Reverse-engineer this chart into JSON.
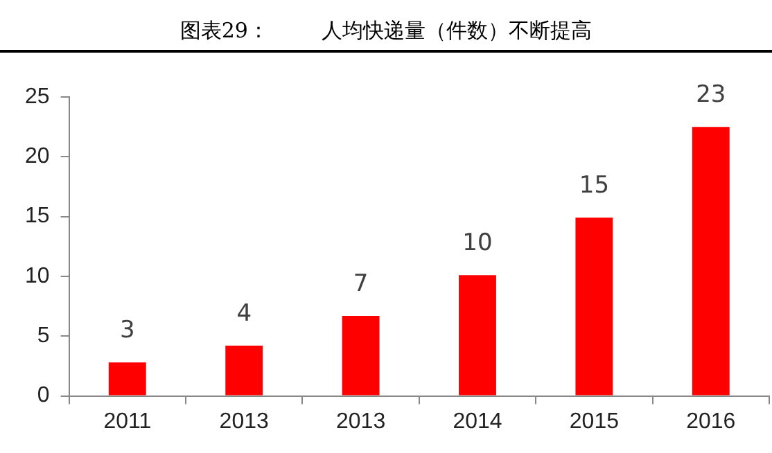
{
  "chart_data": {
    "type": "bar",
    "title": "图表29：        人均快递量（件数）不断提高",
    "categories": [
      "2011",
      "2013",
      "2013",
      "2014",
      "2015",
      "2016"
    ],
    "values": [
      2.8,
      4.2,
      6.7,
      10.1,
      14.9,
      22.5
    ],
    "value_labels": [
      "3",
      "4",
      "7",
      "10",
      "15",
      "23"
    ],
    "color": "#ff0000",
    "ylim": [
      0,
      25
    ],
    "yticks": [
      0,
      5,
      10,
      15,
      20,
      25
    ],
    "grid": false,
    "legend": false
  }
}
